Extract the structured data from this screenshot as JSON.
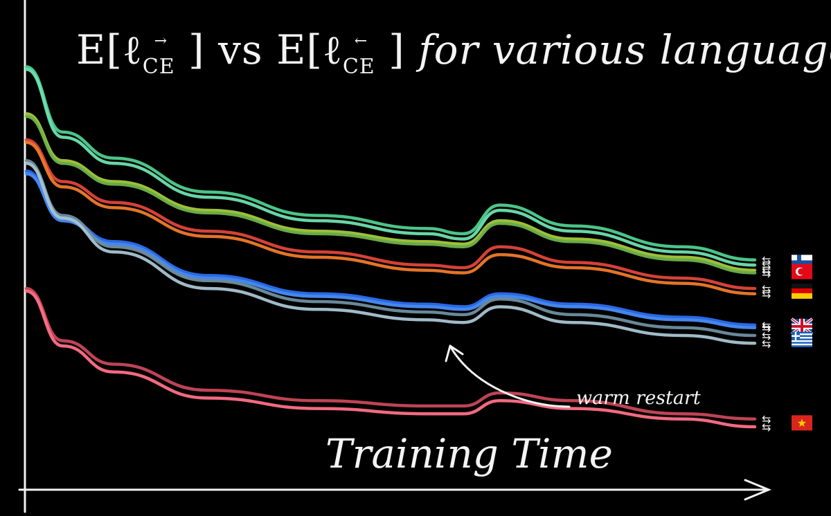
{
  "chart_data": {
    "type": "line",
    "title": {
      "prefix": "E[ℓ",
      "subscript": "CE",
      "fwd_arrow": "→",
      "bwd_arrow": "←",
      "middle": "] vs E[ℓ",
      "suffix": "]",
      "tail": "for various languages"
    },
    "xlabel": "Training Time",
    "ylabel": "",
    "annotation": {
      "text": "warm restart",
      "at_x": 0.59
    },
    "grid": false,
    "legend": "right, flag icons with ⇆ arrows",
    "x": [
      0,
      0.05,
      0.12,
      0.25,
      0.4,
      0.55,
      0.6,
      0.65,
      0.75,
      0.9,
      1.0
    ],
    "series": [
      {
        "direction": "forward",
        "color": "#4fcf8f",
        "flag": "fi-flag-icon",
        "arrow": "⇆",
        "values": [
          2.8,
          2.55,
          2.45,
          2.32,
          2.23,
          2.18,
          2.16,
          2.27,
          2.19,
          2.11,
          2.06
        ]
      },
      {
        "direction": "backward",
        "color": "#6fe0b0",
        "flag": "fi-flag-icon",
        "arrow": "⇆",
        "values": [
          2.79,
          2.53,
          2.43,
          2.3,
          2.21,
          2.16,
          2.14,
          2.25,
          2.17,
          2.09,
          2.04
        ]
      },
      {
        "direction": "forward",
        "color": "#a6c93c",
        "flag": "tr-flag-icon",
        "arrow": "⇆",
        "values": [
          2.62,
          2.44,
          2.36,
          2.25,
          2.17,
          2.13,
          2.12,
          2.21,
          2.14,
          2.07,
          2.02
        ]
      },
      {
        "direction": "backward",
        "color": "#6fb34a",
        "flag": "tr-flag-icon",
        "arrow": "⇆",
        "values": [
          2.61,
          2.43,
          2.35,
          2.24,
          2.16,
          2.12,
          2.11,
          2.2,
          2.13,
          2.06,
          2.01
        ]
      },
      {
        "direction": "forward",
        "color": "#e0453a",
        "flag": "de-flag-icon",
        "arrow": "⇆",
        "values": [
          2.52,
          2.36,
          2.28,
          2.17,
          2.09,
          2.04,
          2.03,
          2.11,
          2.05,
          1.99,
          1.95
        ]
      },
      {
        "direction": "backward",
        "color": "#f07a2a",
        "flag": "de-flag-icon",
        "arrow": "⇆",
        "values": [
          2.51,
          2.34,
          2.26,
          2.15,
          2.07,
          2.02,
          2.01,
          2.08,
          2.03,
          1.97,
          1.93
        ]
      },
      {
        "direction": "forward",
        "color": "#2b6ff0",
        "flag": "gb-flag-icon",
        "arrow": "⇆",
        "values": [
          2.4,
          2.22,
          2.13,
          2.0,
          1.93,
          1.89,
          1.88,
          1.93,
          1.89,
          1.84,
          1.81
        ]
      },
      {
        "direction": "backward",
        "color": "#4a8df5",
        "flag": "gb-flag-icon",
        "arrow": "⇆",
        "values": [
          2.39,
          2.21,
          2.12,
          1.99,
          1.92,
          1.88,
          1.87,
          1.92,
          1.88,
          1.83,
          1.8
        ]
      },
      {
        "direction": "forward",
        "color": "#6f8fa0",
        "flag": "gr-flag-icon",
        "arrow": "⇆",
        "values": [
          2.44,
          2.23,
          2.11,
          1.98,
          1.9,
          1.86,
          1.85,
          1.91,
          1.85,
          1.8,
          1.77
        ]
      },
      {
        "direction": "backward",
        "color": "#a9c4d2",
        "flag": "gr-flag-icon",
        "arrow": "⇆",
        "values": [
          2.43,
          2.22,
          2.09,
          1.95,
          1.87,
          1.83,
          1.82,
          1.88,
          1.82,
          1.77,
          1.74
        ]
      },
      {
        "direction": "forward",
        "color": "#c8485a",
        "flag": "vn-flag-icon",
        "arrow": "⇆",
        "values": [
          1.95,
          1.75,
          1.66,
          1.56,
          1.52,
          1.5,
          1.5,
          1.55,
          1.52,
          1.47,
          1.45
        ]
      },
      {
        "direction": "backward",
        "color": "#ff7088",
        "flag": "vn-flag-icon",
        "arrow": "⇆",
        "values": [
          1.94,
          1.73,
          1.63,
          1.53,
          1.49,
          1.47,
          1.47,
          1.52,
          1.49,
          1.45,
          1.42
        ]
      }
    ],
    "ylim": [
      1.2,
      2.95
    ]
  }
}
